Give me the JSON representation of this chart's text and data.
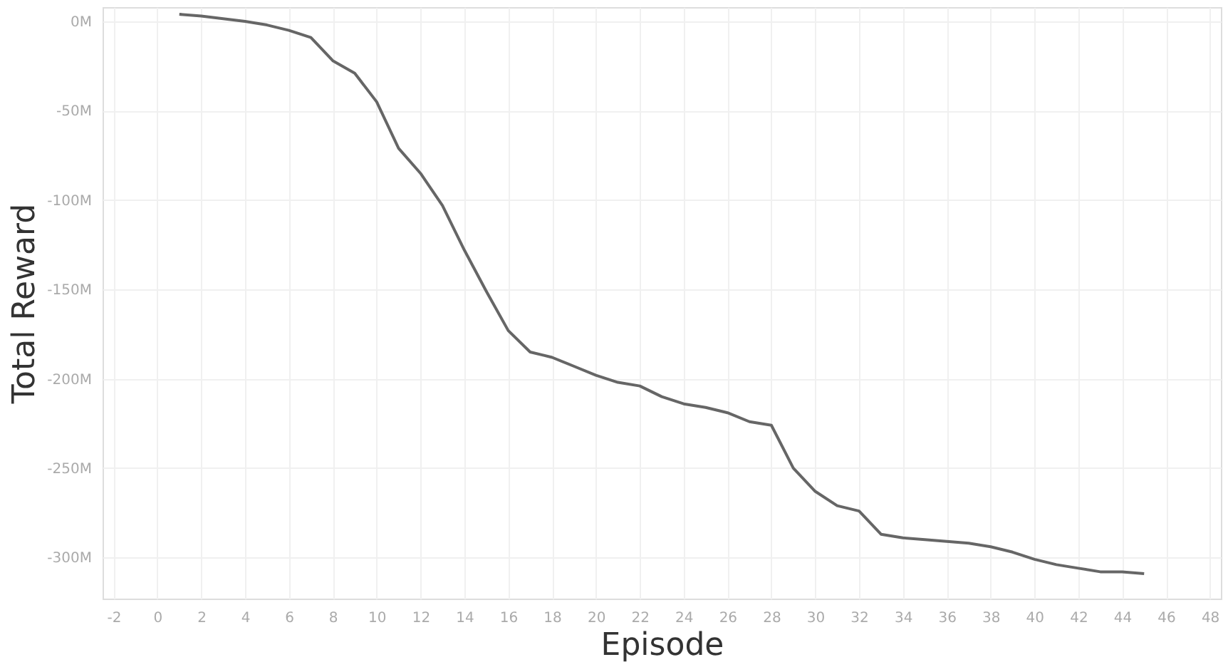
{
  "chart_data": {
    "type": "line",
    "xlabel": "Episode",
    "ylabel": "Total Reward",
    "x": [
      1,
      2,
      3,
      4,
      5,
      6,
      7,
      8,
      9,
      10,
      11,
      12,
      13,
      14,
      15,
      16,
      17,
      18,
      19,
      20,
      21,
      22,
      23,
      24,
      25,
      26,
      27,
      28,
      29,
      30,
      31,
      32,
      33,
      34,
      35,
      36,
      37,
      38,
      39,
      40,
      41,
      42,
      43,
      44,
      45
    ],
    "series": [
      {
        "color": "#666666",
        "values": [
          4,
          3,
          1.5,
          0,
          -2,
          -5,
          -9,
          -22,
          -29,
          -45,
          -71,
          -85,
          -103,
          -128,
          -151,
          -173,
          -185,
          -188,
          -193,
          -198,
          -202,
          -204,
          -210,
          -214,
          -216,
          -219,
          -224,
          -226,
          -250,
          -263,
          -271,
          -274,
          -287,
          -289,
          -290,
          -291,
          -292,
          -294,
          -297,
          -301,
          -304,
          -306,
          -308,
          -308,
          -309
        ]
      }
    ],
    "xlim": [
      -2.5,
      48.5
    ],
    "xticks": [
      -2,
      0,
      2,
      4,
      6,
      8,
      10,
      12,
      14,
      16,
      18,
      20,
      22,
      24,
      26,
      28,
      30,
      32,
      34,
      36,
      38,
      40,
      42,
      44,
      46,
      48
    ],
    "ylim": [
      -323,
      8
    ],
    "yticks": [
      {
        "value": 0,
        "label": "0M"
      },
      {
        "value": -50,
        "label": "-50M"
      },
      {
        "value": -100,
        "label": "-100M"
      },
      {
        "value": -150,
        "label": "-150M"
      },
      {
        "value": -200,
        "label": "-200M"
      },
      {
        "value": -250,
        "label": "-250M"
      },
      {
        "value": -300,
        "label": "-300M"
      }
    ],
    "grid": true,
    "marker": "none",
    "line_style": "solid"
  }
}
